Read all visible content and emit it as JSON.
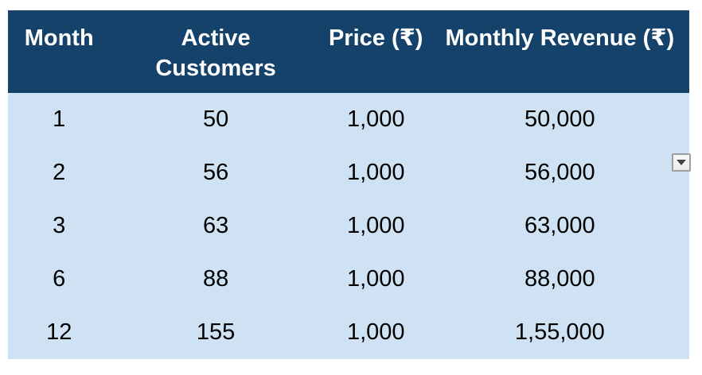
{
  "table": {
    "headers": [
      "Month",
      "Active Customers",
      "Price (₹)",
      "Monthly Revenue (₹)"
    ],
    "rows": [
      [
        "1",
        "50",
        "1,000",
        "50,000"
      ],
      [
        "2",
        "56",
        "1,000",
        "56,000"
      ],
      [
        "3",
        "63",
        "1,000",
        "63,000"
      ],
      [
        "6",
        "88",
        "1,000",
        "88,000"
      ],
      [
        "12",
        "155",
        "1,000",
        "1,55,000"
      ]
    ]
  },
  "chart_data": {
    "type": "table",
    "columns": [
      "Month",
      "Active Customers",
      "Price (₹)",
      "Monthly Revenue (₹)"
    ],
    "months": [
      1,
      2,
      3,
      6,
      12
    ],
    "active_customers": [
      50,
      56,
      63,
      88,
      155
    ],
    "price_inr": [
      1000,
      1000,
      1000,
      1000,
      1000
    ],
    "monthly_revenue_inr": [
      50000,
      56000,
      63000,
      88000,
      155000
    ]
  },
  "controls": {
    "dropdown_icon": "triangle-down"
  },
  "colors": {
    "header_bg": "#15426B",
    "body_bg": "#CFE2F3",
    "header_text": "#FFFFFF",
    "body_text": "#000000",
    "page_bg": "#FFFFFF",
    "dropdown_border": "#9E9E9E",
    "dropdown_bg": "#F2F2F2",
    "dropdown_triangle": "#424242"
  }
}
